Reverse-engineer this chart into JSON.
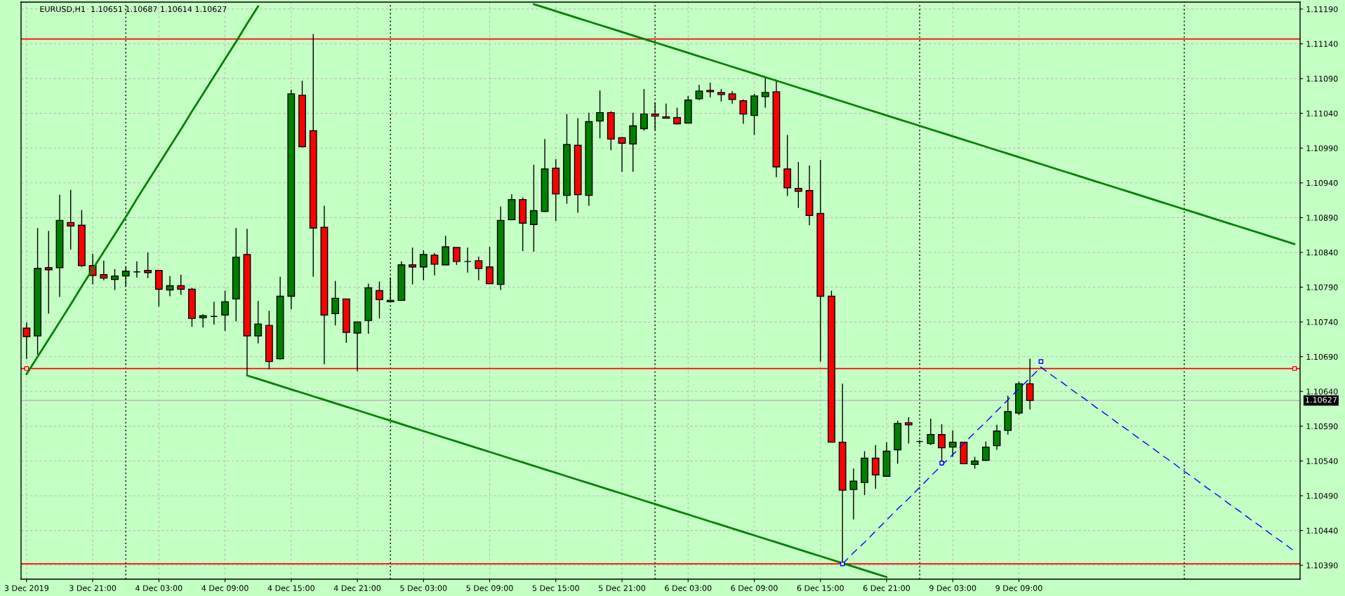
{
  "chart_data": {
    "type": "candlestick",
    "title": "EURUSD,H1  1.10651 1.10687 1.10614 1.10627",
    "categories": [
      "3 Dec 2019",
      null,
      null,
      null,
      null,
      null,
      "3 Dec 21:00",
      null,
      null,
      null,
      null,
      null,
      "4 Dec 03:00",
      null,
      null,
      null,
      null,
      null,
      "4 Dec 09:00",
      null,
      null,
      null,
      null,
      null,
      "4 Dec 15:00",
      null,
      null,
      null,
      null,
      null,
      "4 Dec 21:00",
      null,
      null,
      null,
      null,
      null,
      "5 Dec 03:00",
      null,
      null,
      null,
      null,
      null,
      "5 Dec 09:00",
      null,
      null,
      null,
      null,
      null,
      "5 Dec 15:00",
      null,
      null,
      null,
      null,
      null,
      "5 Dec 21:00",
      null,
      null,
      null,
      null,
      null,
      "6 Dec 03:00",
      null,
      null,
      null,
      null,
      null,
      "6 Dec 09:00",
      null,
      null,
      null,
      null,
      null,
      "6 Dec 15:00",
      null,
      null,
      null,
      null,
      null,
      "6 Dec 21:00",
      null,
      null,
      null,
      null,
      null,
      "9 Dec 03:00",
      null,
      null,
      null,
      null,
      null,
      "9 Dec 09:00",
      null,
      null,
      null,
      null,
      null,
      null,
      null,
      null,
      null,
      null,
      null,
      null,
      null,
      null,
      null,
      null,
      null,
      null,
      null,
      null,
      null,
      null,
      null,
      null,
      null
    ],
    "ohlc": [
      [
        1.10731,
        1.10739,
        1.10687,
        1.10719
      ],
      [
        1.1072,
        1.10875,
        1.10693,
        1.10817
      ],
      [
        1.10818,
        1.10871,
        1.10752,
        1.10815
      ],
      [
        1.10818,
        1.10923,
        1.10776,
        1.10886
      ],
      [
        1.10883,
        1.1093,
        1.10844,
        1.10878
      ],
      [
        1.10879,
        1.10901,
        1.10819,
        1.10821
      ],
      [
        1.10821,
        1.10838,
        1.10794,
        1.10807
      ],
      [
        1.10808,
        1.10828,
        1.108,
        1.10803
      ],
      [
        1.10801,
        1.10816,
        1.10786,
        1.10806
      ],
      [
        1.10806,
        1.10819,
        1.10791,
        1.10813
      ],
      [
        1.10812,
        1.10827,
        1.10804,
        1.10812
      ],
      [
        1.10814,
        1.1084,
        1.10803,
        1.10811
      ],
      [
        1.10814,
        1.10814,
        1.10762,
        1.10787
      ],
      [
        1.10786,
        1.10806,
        1.10777,
        1.10792
      ],
      [
        1.10792,
        1.10808,
        1.10779,
        1.10787
      ],
      [
        1.10787,
        1.10789,
        1.10733,
        1.10745
      ],
      [
        1.10746,
        1.10751,
        1.10732,
        1.10749
      ],
      [
        1.10748,
        1.10769,
        1.10736,
        1.10748
      ],
      [
        1.1075,
        1.10785,
        1.10727,
        1.10769
      ],
      [
        1.10773,
        1.10875,
        1.10741,
        1.10833
      ],
      [
        1.10837,
        1.10874,
        1.10663,
        1.1072
      ],
      [
        1.1072,
        1.1077,
        1.10709,
        1.10737
      ],
      [
        1.10735,
        1.10756,
        1.10672,
        1.10683
      ],
      [
        1.10687,
        1.10805,
        1.10686,
        1.10777
      ],
      [
        1.10777,
        1.11074,
        1.10758,
        1.11068
      ],
      [
        1.11066,
        1.11087,
        1.10991,
        1.10992
      ],
      [
        1.11015,
        1.11154,
        1.10805,
        1.10875
      ],
      [
        1.10876,
        1.10907,
        1.10679,
        1.1075
      ],
      [
        1.10752,
        1.10799,
        1.10735,
        1.10774
      ],
      [
        1.10773,
        1.10773,
        1.1071,
        1.10725
      ],
      [
        1.10724,
        1.1074,
        1.10669,
        1.1074
      ],
      [
        1.10742,
        1.10795,
        1.10723,
        1.10789
      ],
      [
        1.10785,
        1.10798,
        1.10745,
        1.10772
      ],
      [
        1.10769,
        1.10804,
        1.10768,
        1.10771
      ],
      [
        1.10771,
        1.10827,
        1.10771,
        1.10822
      ],
      [
        1.10822,
        1.10847,
        1.10794,
        1.10819
      ],
      [
        1.10819,
        1.10843,
        1.108,
        1.10837
      ],
      [
        1.10836,
        1.10839,
        1.10807,
        1.10823
      ],
      [
        1.10822,
        1.10864,
        1.10822,
        1.10848
      ],
      [
        1.10847,
        1.10847,
        1.10822,
        1.10827
      ],
      [
        1.10827,
        1.10847,
        1.10811,
        1.10827
      ],
      [
        1.10828,
        1.10834,
        1.108,
        1.10817
      ],
      [
        1.10819,
        1.10848,
        1.10795,
        1.10795
      ],
      [
        1.10794,
        1.10906,
        1.10786,
        1.10886
      ],
      [
        1.10887,
        1.10924,
        1.10886,
        1.10916
      ],
      [
        1.10916,
        1.10919,
        1.10842,
        1.10882
      ],
      [
        1.1088,
        1.10966,
        1.10841,
        1.109
      ],
      [
        1.10899,
        1.11003,
        1.10898,
        1.1096
      ],
      [
        1.10961,
        1.10974,
        1.10885,
        1.10924
      ],
      [
        1.10922,
        1.11039,
        1.1091,
        1.10995
      ],
      [
        1.10994,
        1.11033,
        1.10897,
        1.10923
      ],
      [
        1.10922,
        1.11041,
        1.10907,
        1.11028
      ],
      [
        1.11029,
        1.11073,
        1.11004,
        1.11041
      ],
      [
        1.11041,
        1.11043,
        1.10987,
        1.11003
      ],
      [
        1.11005,
        1.11006,
        1.10956,
        1.10997
      ],
      [
        1.10996,
        1.11041,
        1.10956,
        1.11022
      ],
      [
        1.11018,
        1.11075,
        1.11015,
        1.11039
      ],
      [
        1.11039,
        1.11056,
        1.11016,
        1.11036
      ],
      [
        1.11035,
        1.11054,
        1.11033,
        1.11033
      ],
      [
        1.11034,
        1.11048,
        1.11024,
        1.11025
      ],
      [
        1.11026,
        1.11065,
        1.11026,
        1.11059
      ],
      [
        1.11061,
        1.11081,
        1.11059,
        1.11072
      ],
      [
        1.11073,
        1.11084,
        1.11063,
        1.11071
      ],
      [
        1.1107,
        1.11075,
        1.11057,
        1.11067
      ],
      [
        1.11068,
        1.11072,
        1.11054,
        1.1106
      ],
      [
        1.11058,
        1.1106,
        1.11025,
        1.11039
      ],
      [
        1.11037,
        1.11068,
        1.11009,
        1.11065
      ],
      [
        1.11064,
        1.11091,
        1.11048,
        1.1107
      ],
      [
        1.11071,
        1.11086,
        1.10948,
        1.10963
      ],
      [
        1.1096,
        1.11009,
        1.10921,
        1.10933
      ],
      [
        1.10932,
        1.1097,
        1.10904,
        1.10928
      ],
      [
        1.10929,
        1.10965,
        1.10879,
        1.10893
      ],
      [
        1.10896,
        1.10973,
        1.10683,
        1.10777
      ],
      [
        1.10777,
        1.10785,
        1.10567,
        1.10567
      ],
      [
        1.10567,
        1.10651,
        1.10392,
        1.10498
      ],
      [
        1.10499,
        1.10529,
        1.10456,
        1.10511
      ],
      [
        1.10509,
        1.10554,
        1.10491,
        1.10544
      ],
      [
        1.10544,
        1.10563,
        1.105,
        1.1052
      ],
      [
        1.10518,
        1.10567,
        1.10518,
        1.10554
      ],
      [
        1.10556,
        1.10598,
        1.10536,
        1.10594
      ],
      [
        1.10595,
        1.10603,
        1.10565,
        1.10592
      ],
      [
        1.10568,
        1.1057,
        1.10564,
        1.10568
      ],
      [
        1.10565,
        1.10601,
        1.10563,
        1.10578
      ],
      [
        1.10578,
        1.10593,
        1.10537,
        1.10559
      ],
      [
        1.1056,
        1.10584,
        1.10546,
        1.10567
      ],
      [
        1.10567,
        1.10567,
        1.10536,
        1.10536
      ],
      [
        1.10535,
        1.10546,
        1.10529,
        1.1054
      ],
      [
        1.10541,
        1.10568,
        1.1054,
        1.1056
      ],
      [
        1.10562,
        1.10592,
        1.10556,
        1.10583
      ],
      [
        1.10584,
        1.10634,
        1.10578,
        1.10611
      ],
      [
        1.10609,
        1.10654,
        1.10606,
        1.10651
      ],
      [
        1.10651,
        1.10687,
        1.10614,
        1.10627
      ],
      null,
      null,
      null,
      null,
      null,
      null,
      null,
      null,
      null,
      null,
      null,
      null,
      null,
      null,
      null,
      null,
      null,
      null,
      null,
      null,
      null,
      null,
      null,
      null
    ],
    "colors": [
      "#ff0000",
      "#008000",
      "#ff0000",
      "#008000",
      "#ff0000",
      "#ff0000",
      "#ff0000",
      "#ff0000",
      "#008000",
      "#008000",
      "#000000",
      "#ff0000",
      "#ff0000",
      "#008000",
      "#ff0000",
      "#ff0000",
      "#008000",
      "#000000",
      "#008000",
      "#008000",
      "#ff0000",
      "#008000",
      "#ff0000",
      "#008000",
      "#008000",
      "#ff0000",
      "#ff0000",
      "#ff0000",
      "#008000",
      "#ff0000",
      "#008000",
      "#008000",
      "#ff0000",
      "#008000",
      "#008000",
      "#ff0000",
      "#008000",
      "#ff0000",
      "#008000",
      "#ff0000",
      "#000000",
      "#ff0000",
      "#ff0000",
      "#008000",
      "#008000",
      "#ff0000",
      "#008000",
      "#008000",
      "#ff0000",
      "#008000",
      "#ff0000",
      "#008000",
      "#008000",
      "#ff0000",
      "#ff0000",
      "#008000",
      "#008000",
      "#ff0000",
      "#ff0000",
      "#ff0000",
      "#008000",
      "#008000",
      "#ff0000",
      "#ff0000",
      "#ff0000",
      "#ff0000",
      "#008000",
      "#008000",
      "#ff0000",
      "#ff0000",
      "#ff0000",
      "#ff0000",
      "#ff0000",
      "#ff0000",
      "#ff0000",
      "#008000",
      "#008000",
      "#ff0000",
      "#008000",
      "#008000",
      "#ff0000",
      "#000000",
      "#008000",
      "#ff0000",
      "#008000",
      "#ff0000",
      "#008000",
      "#008000",
      "#008000",
      "#008000",
      "#008000",
      "#ff0000",
      null,
      null,
      null,
      null,
      null,
      null,
      null,
      null,
      null,
      null,
      null,
      null,
      null,
      null,
      null,
      null,
      null,
      null,
      null,
      null,
      null,
      null,
      null,
      null
    ],
    "series": [
      {
        "type": "line",
        "color": "#008000",
        "values": [
          1.10665,
          1.1069,
          1.10715,
          1.1074,
          1.10765,
          1.10791,
          1.10816,
          1.10841,
          1.10866,
          1.10891,
          1.10917,
          1.10942,
          1.10967,
          1.10992,
          1.11017,
          1.11043,
          1.11068,
          1.11093,
          1.11118,
          1.11143,
          1.11169,
          1.11194,
          null,
          null,
          null,
          null,
          null,
          null,
          null,
          null,
          null,
          null,
          null,
          null,
          null,
          null,
          null,
          null,
          null,
          null,
          null,
          null,
          null,
          null,
          null,
          null,
          null,
          null,
          null,
          null,
          null,
          null,
          null,
          null,
          null,
          null,
          null,
          null,
          null,
          null,
          null,
          null,
          null,
          null,
          null,
          null,
          null,
          null,
          null,
          null,
          null,
          null,
          null,
          null,
          null,
          null,
          null,
          null,
          null,
          null,
          null,
          null,
          null,
          null,
          null,
          null,
          null,
          null,
          null,
          null,
          null,
          null,
          null,
          null,
          null,
          null,
          null,
          null,
          null,
          null,
          null,
          null,
          null,
          null,
          null,
          null,
          null,
          null,
          null,
          null,
          null,
          null,
          null,
          null,
          null,
          null
        ]
      },
      {
        "type": "line",
        "color": "#008000",
        "values": [
          null,
          null,
          null,
          null,
          null,
          null,
          null,
          null,
          null,
          null,
          null,
          null,
          null,
          null,
          null,
          null,
          null,
          null,
          null,
          null,
          null,
          null,
          null,
          null,
          null,
          null,
          null,
          null,
          null,
          null,
          null,
          null,
          null,
          null,
          null,
          null,
          null,
          null,
          null,
          null,
          null,
          null,
          null,
          null,
          null,
          null,
          1.11197,
          1.11192,
          1.11187,
          1.11182,
          1.11177,
          1.11172,
          1.11167,
          1.11162,
          1.11157,
          1.11152,
          1.11147,
          1.11142,
          1.11137,
          1.11132,
          1.11127,
          1.11122,
          1.11117,
          1.11112,
          1.11107,
          1.11102,
          1.11097,
          1.11092,
          1.11087,
          1.11082,
          1.11077,
          1.11072,
          1.11067,
          1.11062,
          1.11057,
          1.11052,
          1.11047,
          1.11042,
          1.11037,
          1.11032,
          1.11027,
          1.11022,
          1.11017,
          1.11012,
          1.11007,
          1.11002,
          1.10997,
          1.10992,
          1.10987,
          1.10982,
          1.10977,
          1.10972,
          1.10967,
          1.10962,
          1.10957,
          1.10952,
          1.10947,
          1.10942,
          1.10937,
          1.10932,
          1.10927,
          1.10922,
          1.10917,
          1.10912,
          1.10907,
          1.10902,
          1.10897,
          1.10892,
          1.10887,
          1.10882,
          1.10877,
          1.10872,
          1.10867,
          1.10862,
          1.10857,
          1.10852
        ]
      },
      {
        "type": "line",
        "color": "#008000",
        "values": [
          null,
          null,
          null,
          null,
          null,
          null,
          null,
          null,
          null,
          null,
          null,
          null,
          null,
          null,
          null,
          null,
          null,
          null,
          null,
          null,
          1.10663,
          1.10658,
          1.10653,
          1.10648,
          1.10643,
          1.10638,
          1.10633,
          1.10628,
          1.10623,
          1.10618,
          1.10613,
          1.10608,
          1.10603,
          1.10598,
          1.10593,
          1.10588,
          1.10583,
          1.10578,
          1.10573,
          1.10568,
          1.10563,
          1.10558,
          1.10553,
          1.10548,
          1.10543,
          1.10538,
          1.10533,
          1.10528,
          1.10523,
          1.10518,
          1.10513,
          1.10508,
          1.10503,
          1.10498,
          1.10493,
          1.10488,
          1.10483,
          1.10478,
          1.10473,
          1.10468,
          1.10463,
          1.10458,
          1.10453,
          1.10448,
          1.10443,
          1.10438,
          1.10433,
          1.10428,
          1.10423,
          1.10418,
          1.10413,
          1.10408,
          1.10403,
          1.10398,
          1.10393,
          1.10388,
          1.10383,
          1.10378,
          1.10373,
          null,
          null,
          null,
          null,
          null,
          null,
          null,
          null,
          null,
          null,
          null,
          null,
          null,
          null,
          null,
          null,
          null,
          null,
          null,
          null,
          null,
          null,
          null,
          null,
          null,
          null,
          null,
          null,
          null,
          null,
          null,
          null,
          null,
          null,
          null,
          null,
          null
        ]
      },
      {
        "type": "line",
        "color": "#0000ff",
        "line_style": "dashed",
        "values": [
          null,
          null,
          null,
          null,
          null,
          null,
          null,
          null,
          null,
          null,
          null,
          null,
          null,
          null,
          null,
          null,
          null,
          null,
          null,
          null,
          null,
          null,
          null,
          null,
          null,
          null,
          null,
          null,
          null,
          null,
          null,
          null,
          null,
          null,
          null,
          null,
          null,
          null,
          null,
          null,
          null,
          null,
          null,
          null,
          null,
          null,
          null,
          null,
          null,
          null,
          null,
          null,
          null,
          null,
          null,
          null,
          null,
          null,
          null,
          null,
          null,
          null,
          null,
          null,
          null,
          null,
          null,
          null,
          null,
          null,
          null,
          null,
          null,
          null,
          1.10392,
          1.10408,
          1.10423,
          1.10439,
          1.10455,
          1.10471,
          1.10486,
          1.10502,
          1.10518,
          1.10534,
          1.10549,
          1.10565,
          1.10581,
          1.10596,
          1.10612,
          1.10628,
          1.10644,
          1.10659,
          1.10675,
          1.10663,
          1.10652,
          1.1064,
          1.10629,
          1.10617,
          1.10606,
          1.10594,
          1.10583,
          1.10571,
          1.1056,
          1.10548,
          1.10537,
          1.10525,
          1.10514,
          1.10502,
          1.10491,
          1.10479,
          1.10468,
          1.10456,
          1.10445,
          1.10433,
          1.10422,
          1.1041
        ]
      },
      {
        "type": "scatter",
        "color": "#0000ff",
        "marker": "square",
        "values": [
          null,
          null,
          null,
          null,
          null,
          null,
          null,
          null,
          null,
          null,
          null,
          null,
          null,
          null,
          null,
          null,
          null,
          null,
          null,
          null,
          null,
          null,
          null,
          null,
          null,
          null,
          null,
          null,
          null,
          null,
          null,
          null,
          null,
          null,
          null,
          null,
          null,
          null,
          null,
          null,
          null,
          null,
          null,
          null,
          null,
          null,
          null,
          null,
          null,
          null,
          null,
          null,
          null,
          null,
          null,
          null,
          null,
          null,
          null,
          null,
          null,
          null,
          null,
          null,
          null,
          null,
          null,
          null,
          null,
          null,
          null,
          null,
          null,
          null,
          1.10392,
          null,
          null,
          null,
          null,
          null,
          null,
          null,
          null,
          1.10537,
          null,
          null,
          null,
          null,
          null,
          null,
          null,
          null,
          1.10683,
          null,
          null,
          null,
          null,
          null,
          null,
          null,
          null,
          null,
          null,
          null,
          null,
          null,
          null,
          null,
          null,
          null,
          null,
          null,
          null,
          null,
          null,
          null
        ]
      },
      {
        "type": "scatter",
        "color": "#ff0000",
        "marker": "square",
        "values": [
          1.10673,
          null,
          null,
          null,
          null,
          null,
          null,
          null,
          null,
          null,
          null,
          null,
          null,
          null,
          null,
          null,
          null,
          null,
          null,
          null,
          null,
          null,
          null,
          null,
          null,
          null,
          null,
          null,
          null,
          null,
          null,
          null,
          null,
          null,
          null,
          null,
          null,
          null,
          null,
          null,
          null,
          null,
          null,
          null,
          null,
          null,
          null,
          null,
          null,
          null,
          null,
          null,
          null,
          null,
          null,
          null,
          null,
          null,
          null,
          null,
          null,
          null,
          null,
          null,
          null,
          null,
          null,
          null,
          null,
          null,
          null,
          null,
          null,
          null,
          null,
          null,
          null,
          null,
          null,
          null,
          null,
          null,
          null,
          null,
          null,
          null,
          null,
          null,
          null,
          null,
          null,
          null,
          null,
          null,
          null,
          null,
          null,
          null,
          null,
          null,
          null,
          null,
          null,
          null,
          null,
          null,
          null,
          null,
          null,
          null,
          null,
          null,
          null,
          null,
          null,
          1.10673
        ]
      }
    ],
    "ylim": [
      1.1037,
      1.112
    ],
    "yticks": [
      {
        "value": 1.1039,
        "label": "1.10390"
      },
      {
        "value": 1.1044,
        "label": "1.10440"
      },
      {
        "value": 1.1049,
        "label": "1.10490"
      },
      {
        "value": 1.1054,
        "label": "1.10540"
      },
      {
        "value": 1.1059,
        "label": "1.10590"
      },
      {
        "value": 1.1064,
        "label": "1.10640"
      },
      {
        "value": 1.1069,
        "label": "1.10690"
      },
      {
        "value": 1.1074,
        "label": "1.10740"
      },
      {
        "value": 1.1079,
        "label": "1.10790"
      },
      {
        "value": 1.1084,
        "label": "1.10840"
      },
      {
        "value": 1.1089,
        "label": "1.10890"
      },
      {
        "value": 1.1094,
        "label": "1.10940"
      },
      {
        "value": 1.1099,
        "label": "1.10990"
      },
      {
        "value": 1.1104,
        "label": "1.11040"
      },
      {
        "value": 1.1109,
        "label": "1.11090"
      },
      {
        "value": 1.1114,
        "label": "1.11140"
      },
      {
        "value": 1.1119,
        "label": "1.11190"
      }
    ],
    "ref_lines": [
      {
        "axis": "y",
        "value": 1.11147,
        "color": "#ff0000"
      },
      {
        "axis": "y",
        "value": 1.10673,
        "color": "#ff0000"
      },
      {
        "axis": "y",
        "value": 1.10392,
        "color": "#ff0000"
      },
      {
        "axis": "y",
        "value": 1.10627,
        "label": "1.10627",
        "color": "#c0c0c0"
      }
    ],
    "grid": true
  }
}
